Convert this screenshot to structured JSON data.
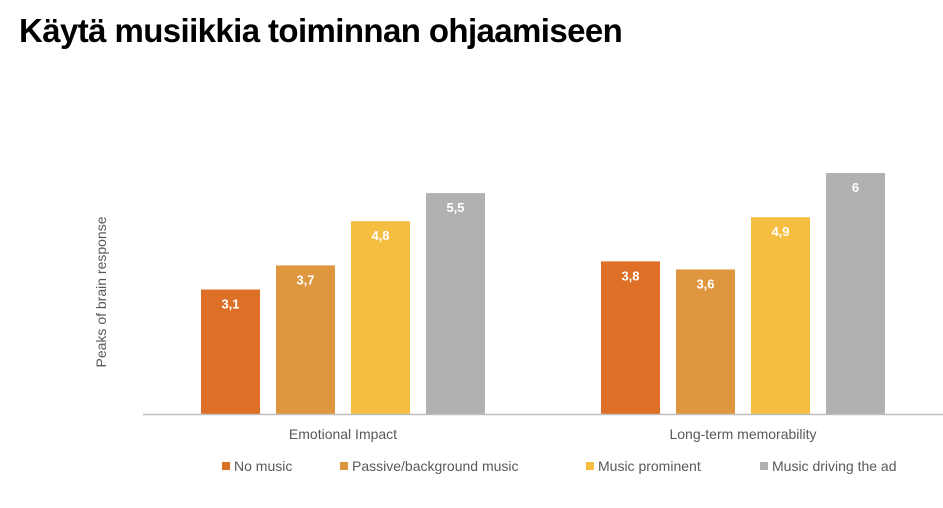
{
  "page": {
    "title": "Käytä musiikkia toiminnan ohjaamiseen"
  },
  "chart_data": {
    "type": "bar",
    "title": "",
    "xlabel": "",
    "ylabel": "Peaks of brain response",
    "categories": [
      "Emotional Impact",
      "Long-term memorability"
    ],
    "series": [
      {
        "name": "No music",
        "values": [
          3.1,
          3.8
        ],
        "labels": [
          "3,1",
          "3,8"
        ],
        "color": "#DD6F26"
      },
      {
        "name": "Passive/background music",
        "values": [
          3.7,
          3.6
        ],
        "labels": [
          "3,7",
          "3,6"
        ],
        "color": "#DE963F"
      },
      {
        "name": "Music prominent",
        "values": [
          4.8,
          4.9
        ],
        "labels": [
          "4,8",
          "4,9"
        ],
        "color": "#F5BE41"
      },
      {
        "name": "Music driving the ad",
        "values": [
          5.5,
          6
        ],
        "labels": [
          "5,5",
          "6"
        ],
        "color": "#B1B1B1"
      }
    ],
    "ylim": [
      0,
      6.2
    ],
    "grid": false,
    "legend_position": "bottom",
    "data_label_color": "#ffffff",
    "axis_color": "#BFBFBF",
    "text_color": "#595959"
  }
}
